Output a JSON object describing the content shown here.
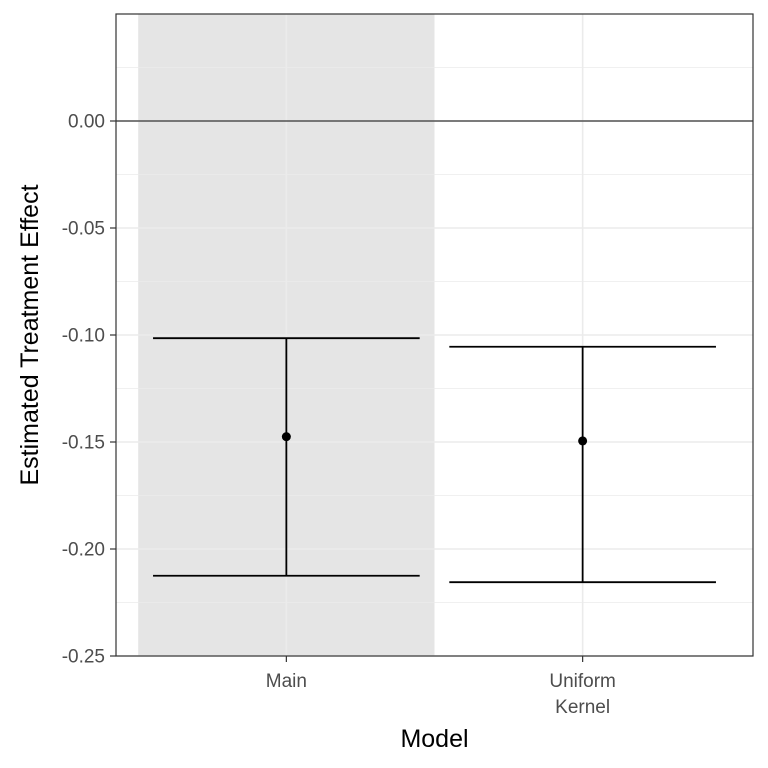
{
  "chart_data": {
    "type": "errorbar",
    "categories": [
      "Main",
      "Uniform\nKernel"
    ],
    "points": [
      {
        "category": "Main",
        "estimate": -0.1475,
        "lower": -0.2125,
        "upper": -0.1015,
        "highlighted": true
      },
      {
        "category": "Uniform\nKernel",
        "estimate": -0.1495,
        "lower": -0.2155,
        "upper": -0.1055,
        "highlighted": false
      }
    ],
    "xlabel": "Model",
    "ylabel": "Estimated Treatment Effect",
    "ylim": [
      -0.25,
      0.05
    ],
    "yticks": [
      0.0,
      -0.05,
      -0.1,
      -0.15,
      -0.2,
      -0.25
    ],
    "ytick_labels": [
      "0.00",
      "-0.05",
      "-0.10",
      "-0.15",
      "-0.20",
      "-0.25"
    ],
    "reference_line": 0.0,
    "grid": true,
    "legend": "none",
    "colors": {
      "highlight_band": "#e5e5e5",
      "grid": "#ebebeb",
      "marks": "#000000",
      "panel_border": "#333333",
      "tick_text": "#4d4d4d"
    }
  }
}
